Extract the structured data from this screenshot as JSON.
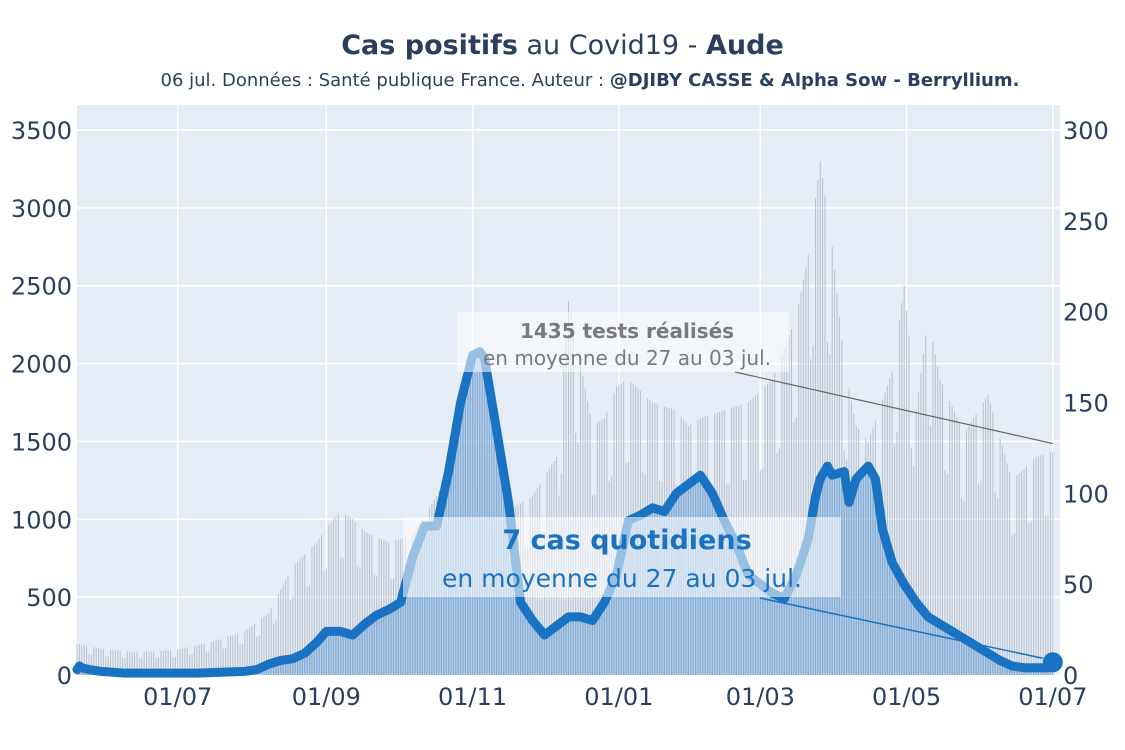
{
  "chart_data": {
    "type": "line",
    "title_parts": [
      {
        "text": "Cas positifs",
        "bold": true
      },
      {
        "text": " au Covid19 - ",
        "bold": false
      },
      {
        "text": "Aude",
        "bold": true
      }
    ],
    "subtitle_prefix": "06 jul. Données : Santé publique France. Auteur : ",
    "subtitle_author": "@DJIBY CASSE & Alpha Sow - Berryllium.",
    "x_ticks": [
      "01/07",
      "01/09",
      "01/11",
      "01/01",
      "01/03",
      "01/05",
      "01/07"
    ],
    "x_tick_days": [
      42,
      104,
      165,
      226,
      285,
      346,
      407
    ],
    "xlim": [
      0,
      410
    ],
    "y_left_ticks": [
      "0",
      "500",
      "1000",
      "1500",
      "2000",
      "2500",
      "3000",
      "3500"
    ],
    "y_left_range": [
      0,
      3500
    ],
    "y_right_ticks": [
      "0",
      "50",
      "100",
      "150",
      "200",
      "250",
      "300"
    ],
    "y_right_range": [
      0,
      300
    ],
    "grid": true,
    "series": [
      {
        "axis": "left",
        "color": "#b8c0cc",
        "days": [
          0,
          10,
          20,
          30,
          40,
          50,
          60,
          70,
          80,
          90,
          100,
          104,
          110,
          115,
          120,
          130,
          140,
          150,
          160,
          165,
          170,
          175,
          180,
          190,
          200,
          205,
          210,
          215,
          220,
          225,
          230,
          240,
          250,
          255,
          260,
          270,
          280,
          290,
          300,
          305,
          310,
          315,
          318,
          320,
          325,
          330,
          340,
          345,
          350,
          355,
          360,
          370,
          380,
          390,
          400,
          407
        ],
        "values": [
          200,
          170,
          150,
          150,
          160,
          190,
          230,
          280,
          400,
          700,
          850,
          950,
          1050,
          1000,
          920,
          850,
          900,
          1150,
          1500,
          1900,
          1450,
          1250,
          1050,
          1150,
          1400,
          2400,
          2000,
          1600,
          1650,
          1850,
          1900,
          1750,
          1700,
          1600,
          1650,
          1700,
          1750,
          1900,
          2300,
          2700,
          3300,
          2750,
          2300,
          2000,
          1600,
          1500,
          1950,
          2500,
          1700,
          2300,
          1900,
          1550,
          1800,
          1250,
          1400,
          1435
        ]
      },
      {
        "axis": "right",
        "color": "#1a73c2",
        "days": [
          0,
          1,
          2,
          5,
          10,
          20,
          30,
          40,
          50,
          60,
          70,
          75,
          80,
          85,
          90,
          95,
          100,
          104,
          110,
          115,
          120,
          125,
          130,
          135,
          140,
          145,
          150,
          155,
          160,
          165,
          168,
          170,
          175,
          180,
          185,
          190,
          195,
          200,
          205,
          210,
          215,
          220,
          225,
          230,
          235,
          240,
          245,
          250,
          255,
          260,
          265,
          270,
          275,
          280,
          285,
          290,
          295,
          300,
          305,
          308,
          310,
          313,
          315,
          320,
          322,
          325,
          330,
          333,
          336,
          340,
          345,
          350,
          355,
          360,
          365,
          370,
          375,
          380,
          385,
          390,
          395,
          400,
          405,
          407
        ],
        "values": [
          3,
          5,
          4,
          3,
          2,
          1,
          1,
          1,
          1,
          1.5,
          2,
          3,
          6,
          8,
          9,
          12,
          18,
          24,
          24,
          22,
          28,
          33,
          36,
          40,
          65,
          82,
          82,
          112,
          150,
          176,
          178,
          174,
          135,
          95,
          40,
          30,
          22,
          27,
          32,
          32,
          30,
          40,
          55,
          85,
          88,
          92,
          90,
          100,
          105,
          110,
          100,
          85,
          72,
          55,
          50,
          45,
          42,
          55,
          75,
          98,
          108,
          115,
          110,
          112,
          95,
          108,
          115,
          108,
          80,
          62,
          50,
          40,
          32,
          28,
          24,
          20,
          16,
          12,
          8,
          5,
          4,
          4,
          4,
          7
        ]
      }
    ],
    "annotations": [
      {
        "bold_text": "1435 tests réalisés",
        "text": "en moyenne du 27 au 03 jul.",
        "color": "#7a7a7a"
      },
      {
        "bold_text": "7 cas quotidiens",
        "text": "en moyenne du 27 au 03 jul.",
        "color": "#1a73c2"
      }
    ]
  }
}
